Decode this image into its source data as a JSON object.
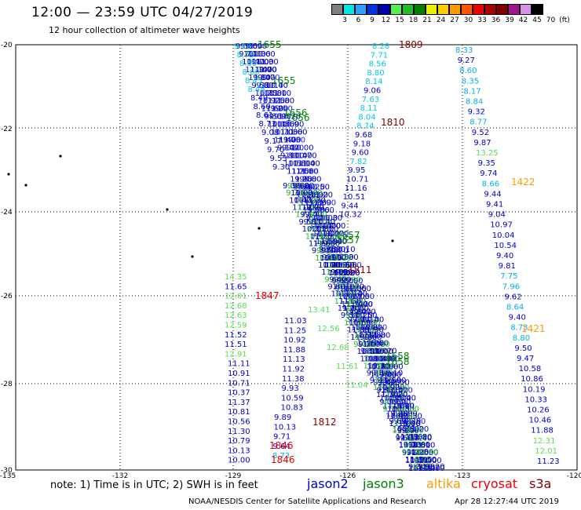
{
  "header": {
    "title": "12:00  —  23:59  UTC  04/27/2019",
    "subtitle": "12 hour collection of altimeter wave heights"
  },
  "colorbar": {
    "colors": [
      "#7f7f7f",
      "#00e5e5",
      "#30a0ff",
      "#0033dd",
      "#0000aa",
      "#55ee55",
      "#22bb22",
      "#008000",
      "#eeee00",
      "#ffcc00",
      "#ff9900",
      "#ff5500",
      "#ee0000",
      "#aa0000",
      "#800000",
      "#a0148c",
      "#d890e8",
      "#000000"
    ],
    "labels": [
      "3",
      "6",
      "9",
      "12",
      "15",
      "18",
      "21",
      "24",
      "27",
      "30",
      "33",
      "36",
      "39",
      "42",
      "45",
      "70",
      "(ft)"
    ]
  },
  "axes": {
    "lat_labels": [
      "-20",
      "-22",
      "-24",
      "-26",
      "-28",
      "-30"
    ],
    "lon_labels": [
      "-135",
      "-132",
      "-129",
      "-126",
      "-123",
      "-120"
    ]
  },
  "time_labels": [
    {
      "text": "1655",
      "color": "#008000"
    },
    {
      "text": "1655",
      "color": "#008000"
    },
    {
      "text": "1656",
      "color": "#008000"
    },
    {
      "text": "1656",
      "color": "#008000"
    },
    {
      "text": "1809",
      "color": "#800000"
    },
    {
      "text": "1810",
      "color": "#800000"
    },
    {
      "text": "1422",
      "color": "#ff9900"
    },
    {
      "text": "1657",
      "color": "#008000"
    },
    {
      "text": "1657",
      "color": "#008000"
    },
    {
      "text": "1811",
      "color": "#800000"
    },
    {
      "text": "1847",
      "color": "#ee0000"
    },
    {
      "text": "1421",
      "color": "#ff9900"
    },
    {
      "text": "1658",
      "color": "#008000"
    },
    {
      "text": "1658",
      "color": "#008000"
    },
    {
      "text": "1812",
      "color": "#800000"
    },
    {
      "text": "1846",
      "color": "#ee0000"
    },
    {
      "text": "1846",
      "color": "#ee0000"
    }
  ],
  "tracks": {
    "left": [
      "14.35",
      "11.65",
      "12.01",
      "12.68",
      "12.63",
      "12.59",
      "11.52",
      "11.51",
      "12.91",
      "11.11",
      "10.91",
      "10.71",
      "10.37",
      "11.37",
      "10.81",
      "10.56",
      "11.30",
      "10.79",
      "10.13",
      "10.00"
    ],
    "mid": [
      "11.03",
      "11.25",
      "10.92",
      "11.88",
      "11.13",
      "11.92",
      "11.38",
      "9.93",
      "10.59",
      "10.83",
      "9.89",
      "10.13",
      "9.71",
      "9.64",
      "8.73"
    ],
    "top_left": [
      "9.13",
      "8.75",
      "8.59",
      "8.60",
      "8.45",
      "8.48",
      "8.49",
      "8.60",
      "8.61",
      "8.73",
      "9.08",
      "9.17",
      "9.70",
      "9.53",
      "9.30"
    ],
    "top_mid": [
      "8.28",
      "7.71",
      "8.56",
      "8.80",
      "8.14",
      "9.06",
      "7.63",
      "8.11",
      "8.04",
      "8.74",
      "9.68",
      "9.18",
      "9.60",
      "7.82",
      "9.95",
      "10.71",
      "11.16",
      "10.51",
      "9.44",
      "10.32"
    ],
    "right": [
      "8.33",
      "9.27",
      "8.60",
      "8.35",
      "8.17",
      "8.84",
      "9.32",
      "8.77",
      "9.52",
      "9.87",
      "13.25",
      "9.35",
      "9.74",
      "8.66",
      "9.44",
      "9.41",
      "9.04",
      "10.97",
      "10.04",
      "10.54",
      "9.40",
      "9.81",
      "7.75",
      "7.96",
      "9.62",
      "8.64",
      "9.40",
      "8.73",
      "8.80",
      "9.50",
      "9.47",
      "10.58",
      "10.86",
      "10.19",
      "10.33",
      "10.26",
      "10.46",
      "11.88",
      "12.31",
      "12.01",
      "11.23"
    ]
  },
  "footer": {
    "note": "note:  1) Time is in UTC;  2) SWH is in feet",
    "legend": [
      {
        "name": "jason2",
        "color": "#0000cc"
      },
      {
        "name": "jason3",
        "color": "#008000"
      },
      {
        "name": "altika",
        "color": "#ff9900"
      },
      {
        "name": "cryosat",
        "color": "#ee0000"
      },
      {
        "name": "s3a",
        "color": "#800000"
      }
    ],
    "credit": "NOAA/NESDIS Center for Satellite Applications and Research",
    "timestamp": "Apr 28 12:27:44 UTC 2019"
  }
}
